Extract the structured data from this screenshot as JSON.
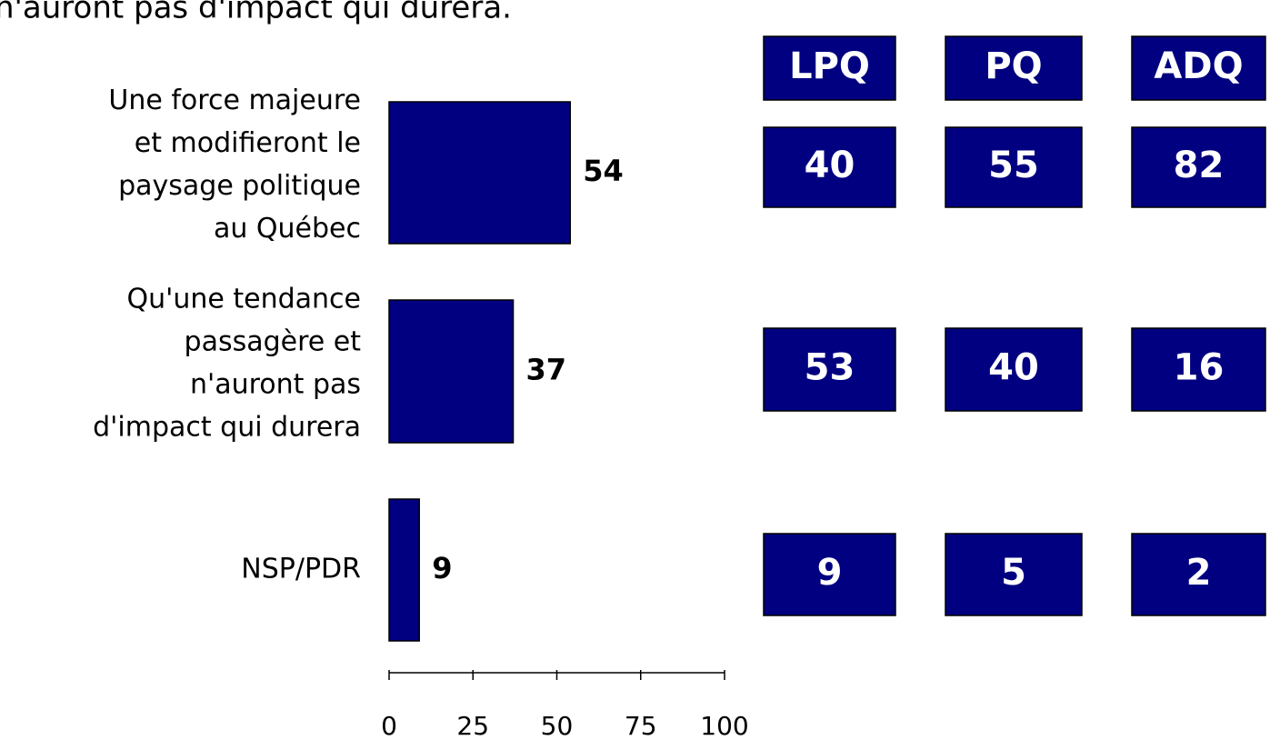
{
  "chart_data": {
    "type": "bar",
    "orientation": "horizontal",
    "title": "n'auront pas d'impact qui durera.",
    "categories": [
      [
        "Une force majeure",
        "et modifieront le",
        "paysage politique",
        "au Québec"
      ],
      [
        "Qu'une tendance",
        "passagère et",
        "n'auront pas",
        "d'impact qui durera"
      ],
      [
        "NSP/PDR"
      ]
    ],
    "values": [
      54,
      37,
      9
    ],
    "color": "#000080",
    "xlim": [
      0,
      100
    ],
    "xticks": [
      0,
      25,
      50,
      75,
      100
    ],
    "breakdown": {
      "columns": [
        "LPQ",
        "PQ",
        "ADQ"
      ],
      "rows": [
        [
          40,
          55,
          82
        ],
        [
          53,
          40,
          16
        ],
        [
          9,
          5,
          2
        ]
      ]
    }
  }
}
